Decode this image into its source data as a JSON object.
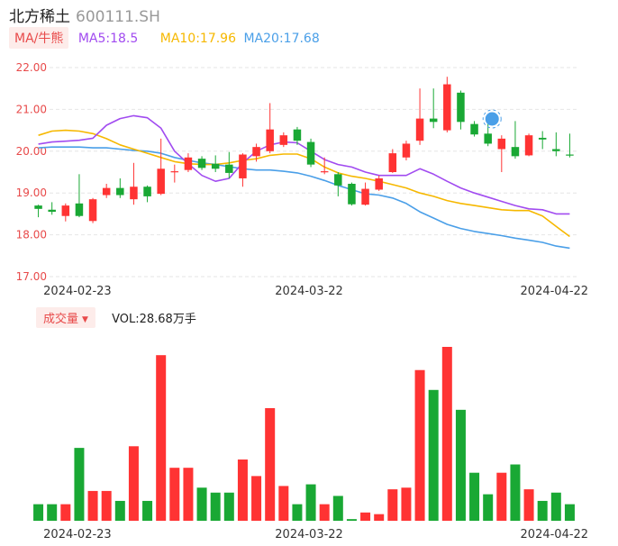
{
  "header": {
    "name": "北方稀土",
    "code": "600111.SH"
  },
  "ma_legend": {
    "tag": "MA/牛熊",
    "ma5": "MA5:18.5",
    "ma10": "MA10:17.96",
    "ma20": "MA20:17.68"
  },
  "volume_legend": {
    "tag": "成交量",
    "text": "VOL:28.68万手"
  },
  "colors": {
    "up": "#ff3333",
    "down": "#19a834",
    "ma5": "#a14bf0",
    "ma10": "#f6b800",
    "ma20": "#4a9fe8",
    "grid": "#e6e6e6",
    "axis_label": "#e84a4a",
    "ma_tag_bg": "#fdecea"
  },
  "chart_data": [
    {
      "type": "candlestick",
      "y_ticks": [
        "22.00",
        "21.00",
        "20.00",
        "19.00",
        "18.00",
        "17.00"
      ],
      "ylim": [
        17.0,
        22.0
      ],
      "x_tick_labels": [
        "2024-02-23",
        "2024-03-22",
        "2024-04-22"
      ],
      "x_tick_index": [
        3,
        20,
        38
      ],
      "grid": "horizontal dashed",
      "candles": [
        {
          "o": 18.7,
          "c": 18.62,
          "h": 18.72,
          "l": 18.42
        },
        {
          "o": 18.6,
          "c": 18.55,
          "h": 18.78,
          "l": 18.48
        },
        {
          "o": 18.45,
          "c": 18.7,
          "h": 18.75,
          "l": 18.32
        },
        {
          "o": 18.75,
          "c": 18.45,
          "h": 19.45,
          "l": 18.42
        },
        {
          "o": 18.33,
          "c": 18.85,
          "h": 18.88,
          "l": 18.28
        },
        {
          "o": 18.95,
          "c": 19.12,
          "h": 19.22,
          "l": 18.88
        },
        {
          "o": 19.12,
          "c": 18.95,
          "h": 19.35,
          "l": 18.88
        },
        {
          "o": 18.85,
          "c": 19.15,
          "h": 19.72,
          "l": 18.72
        },
        {
          "o": 19.15,
          "c": 18.92,
          "h": 19.18,
          "l": 18.78
        },
        {
          "o": 18.98,
          "c": 19.58,
          "h": 20.3,
          "l": 18.95
        },
        {
          "o": 19.52,
          "c": 19.52,
          "h": 19.68,
          "l": 19.25
        },
        {
          "o": 19.55,
          "c": 19.85,
          "h": 19.95,
          "l": 19.5
        },
        {
          "o": 19.82,
          "c": 19.6,
          "h": 19.88,
          "l": 19.55
        },
        {
          "o": 19.7,
          "c": 19.58,
          "h": 19.9,
          "l": 19.5
        },
        {
          "o": 19.68,
          "c": 19.48,
          "h": 19.98,
          "l": 19.35
        },
        {
          "o": 19.35,
          "c": 19.92,
          "h": 19.95,
          "l": 19.15
        },
        {
          "o": 19.88,
          "c": 20.1,
          "h": 20.18,
          "l": 19.75
        },
        {
          "o": 20.0,
          "c": 20.52,
          "h": 21.15,
          "l": 19.95
        },
        {
          "o": 20.15,
          "c": 20.38,
          "h": 20.45,
          "l": 20.1
        },
        {
          "o": 20.52,
          "c": 20.25,
          "h": 20.58,
          "l": 20.15
        },
        {
          "o": 20.22,
          "c": 19.68,
          "h": 20.3,
          "l": 19.62
        },
        {
          "o": 19.52,
          "c": 19.52,
          "h": 19.85,
          "l": 19.45
        },
        {
          "o": 19.45,
          "c": 19.18,
          "h": 19.5,
          "l": 18.92
        },
        {
          "o": 19.22,
          "c": 18.73,
          "h": 19.25,
          "l": 18.7
        },
        {
          "o": 18.72,
          "c": 19.1,
          "h": 19.25,
          "l": 18.7
        },
        {
          "o": 19.08,
          "c": 19.35,
          "h": 19.42,
          "l": 19.05
        },
        {
          "o": 19.5,
          "c": 19.95,
          "h": 20.05,
          "l": 19.48
        },
        {
          "o": 19.85,
          "c": 20.18,
          "h": 20.25,
          "l": 19.78
        },
        {
          "o": 20.25,
          "c": 20.78,
          "h": 21.5,
          "l": 20.15
        },
        {
          "o": 20.78,
          "c": 20.7,
          "h": 21.5,
          "l": 20.55
        },
        {
          "o": 20.5,
          "c": 21.6,
          "h": 21.78,
          "l": 20.45
        },
        {
          "o": 21.4,
          "c": 20.7,
          "h": 21.45,
          "l": 20.52
        },
        {
          "o": 20.65,
          "c": 20.4,
          "h": 20.72,
          "l": 20.35
        },
        {
          "o": 20.42,
          "c": 20.18,
          "h": 20.75,
          "l": 20.12
        },
        {
          "o": 20.05,
          "c": 20.3,
          "h": 20.38,
          "l": 19.5
        },
        {
          "o": 20.1,
          "c": 19.88,
          "h": 20.72,
          "l": 19.82
        },
        {
          "o": 19.9,
          "c": 20.38,
          "h": 20.42,
          "l": 19.88
        },
        {
          "o": 20.32,
          "c": 20.28,
          "h": 20.48,
          "l": 20.05
        },
        {
          "o": 20.05,
          "c": 20.0,
          "h": 20.45,
          "l": 19.88
        },
        {
          "o": 19.92,
          "c": 19.9,
          "h": 20.42,
          "l": 19.85
        }
      ],
      "ma5": [
        20.17,
        20.22,
        20.24,
        20.26,
        20.31,
        20.62,
        20.78,
        20.85,
        20.8,
        20.55,
        20.0,
        19.7,
        19.42,
        19.28,
        19.35,
        19.72,
        20.0,
        20.15,
        20.22,
        20.2,
        20.0,
        19.8,
        19.68,
        19.62,
        19.5,
        19.42,
        19.42,
        19.42,
        19.58,
        19.45,
        19.28,
        19.12,
        19.0,
        18.9,
        18.8,
        18.7,
        18.62,
        18.6,
        18.5,
        18.5
      ],
      "ma10": [
        20.38,
        20.48,
        20.5,
        20.48,
        20.42,
        20.3,
        20.15,
        20.05,
        19.95,
        19.85,
        19.75,
        19.7,
        19.68,
        19.68,
        19.72,
        19.78,
        19.82,
        19.9,
        19.93,
        19.93,
        19.82,
        19.62,
        19.48,
        19.4,
        19.35,
        19.28,
        19.2,
        19.12,
        19.0,
        18.92,
        18.82,
        18.75,
        18.7,
        18.65,
        18.6,
        18.58,
        18.58,
        18.45,
        18.2,
        17.96
      ],
      "ma20": [
        20.08,
        20.1,
        20.1,
        20.1,
        20.08,
        20.08,
        20.05,
        20.02,
        20.0,
        19.95,
        19.85,
        19.78,
        19.72,
        19.68,
        19.63,
        19.58,
        19.55,
        19.55,
        19.52,
        19.48,
        19.4,
        19.3,
        19.18,
        19.08,
        18.98,
        18.95,
        18.88,
        18.75,
        18.55,
        18.4,
        18.25,
        18.15,
        18.08,
        18.03,
        17.98,
        17.92,
        17.87,
        17.82,
        17.73,
        17.68
      ]
    },
    {
      "type": "bar",
      "name": "volume",
      "x_tick_labels": [
        "2024-02-23",
        "2024-03-22",
        "2024-04-22"
      ],
      "values": [
        10,
        10,
        10,
        44,
        18,
        18,
        12,
        45,
        12,
        100,
        32,
        32,
        20,
        17,
        17,
        37,
        27,
        68,
        21,
        10,
        22,
        10,
        15,
        1,
        5,
        4,
        19,
        20,
        91,
        79,
        105,
        67,
        29,
        16,
        29,
        34,
        19,
        12,
        17,
        10
      ],
      "ylim": [
        0,
        105
      ]
    }
  ]
}
